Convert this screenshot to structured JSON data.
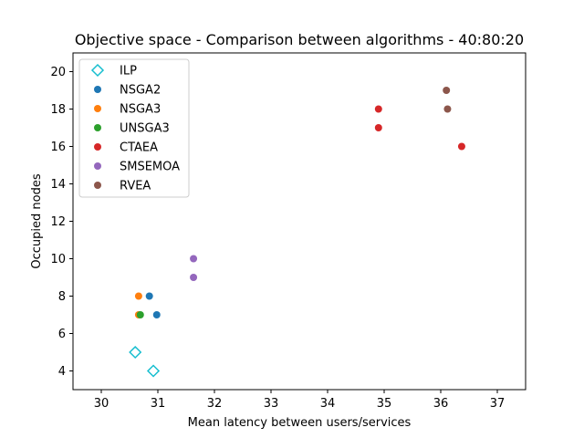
{
  "chart_data": {
    "type": "scatter",
    "title": "Objective space - Comparison between algorithms - 40:80:20",
    "xlabel": "Mean latency between users/services",
    "ylabel": "Occupied nodes",
    "xlim": [
      29.5,
      37.5
    ],
    "ylim": [
      3,
      21
    ],
    "xticks": [
      30,
      31,
      32,
      33,
      34,
      35,
      36,
      37
    ],
    "yticks": [
      4,
      6,
      8,
      10,
      12,
      14,
      16,
      18,
      20
    ],
    "grid": false,
    "legend_position": "top-left",
    "series": [
      {
        "name": "ILP",
        "color": "#17becf",
        "marker": "diamond-open",
        "points": [
          [
            30.6,
            5
          ],
          [
            30.92,
            4
          ]
        ]
      },
      {
        "name": "NSGA2",
        "color": "#1f77b4",
        "marker": "circle",
        "points": [
          [
            30.85,
            8
          ],
          [
            30.98,
            7
          ]
        ]
      },
      {
        "name": "NSGA3",
        "color": "#ff7f0e",
        "marker": "circle",
        "points": [
          [
            30.66,
            8
          ],
          [
            30.66,
            7
          ]
        ]
      },
      {
        "name": "UNSGA3",
        "color": "#2ca02c",
        "marker": "circle",
        "points": [
          [
            30.69,
            7
          ]
        ]
      },
      {
        "name": "CTAEA",
        "color": "#d62728",
        "marker": "circle",
        "points": [
          [
            34.9,
            18
          ],
          [
            34.9,
            17
          ],
          [
            36.37,
            16
          ]
        ]
      },
      {
        "name": "SMSEMOA",
        "color": "#9467bd",
        "marker": "circle",
        "points": [
          [
            31.63,
            10
          ],
          [
            31.63,
            9
          ]
        ]
      },
      {
        "name": "RVEA",
        "color": "#8c564b",
        "marker": "circle",
        "points": [
          [
            36.1,
            19
          ],
          [
            36.12,
            18
          ]
        ]
      }
    ]
  }
}
